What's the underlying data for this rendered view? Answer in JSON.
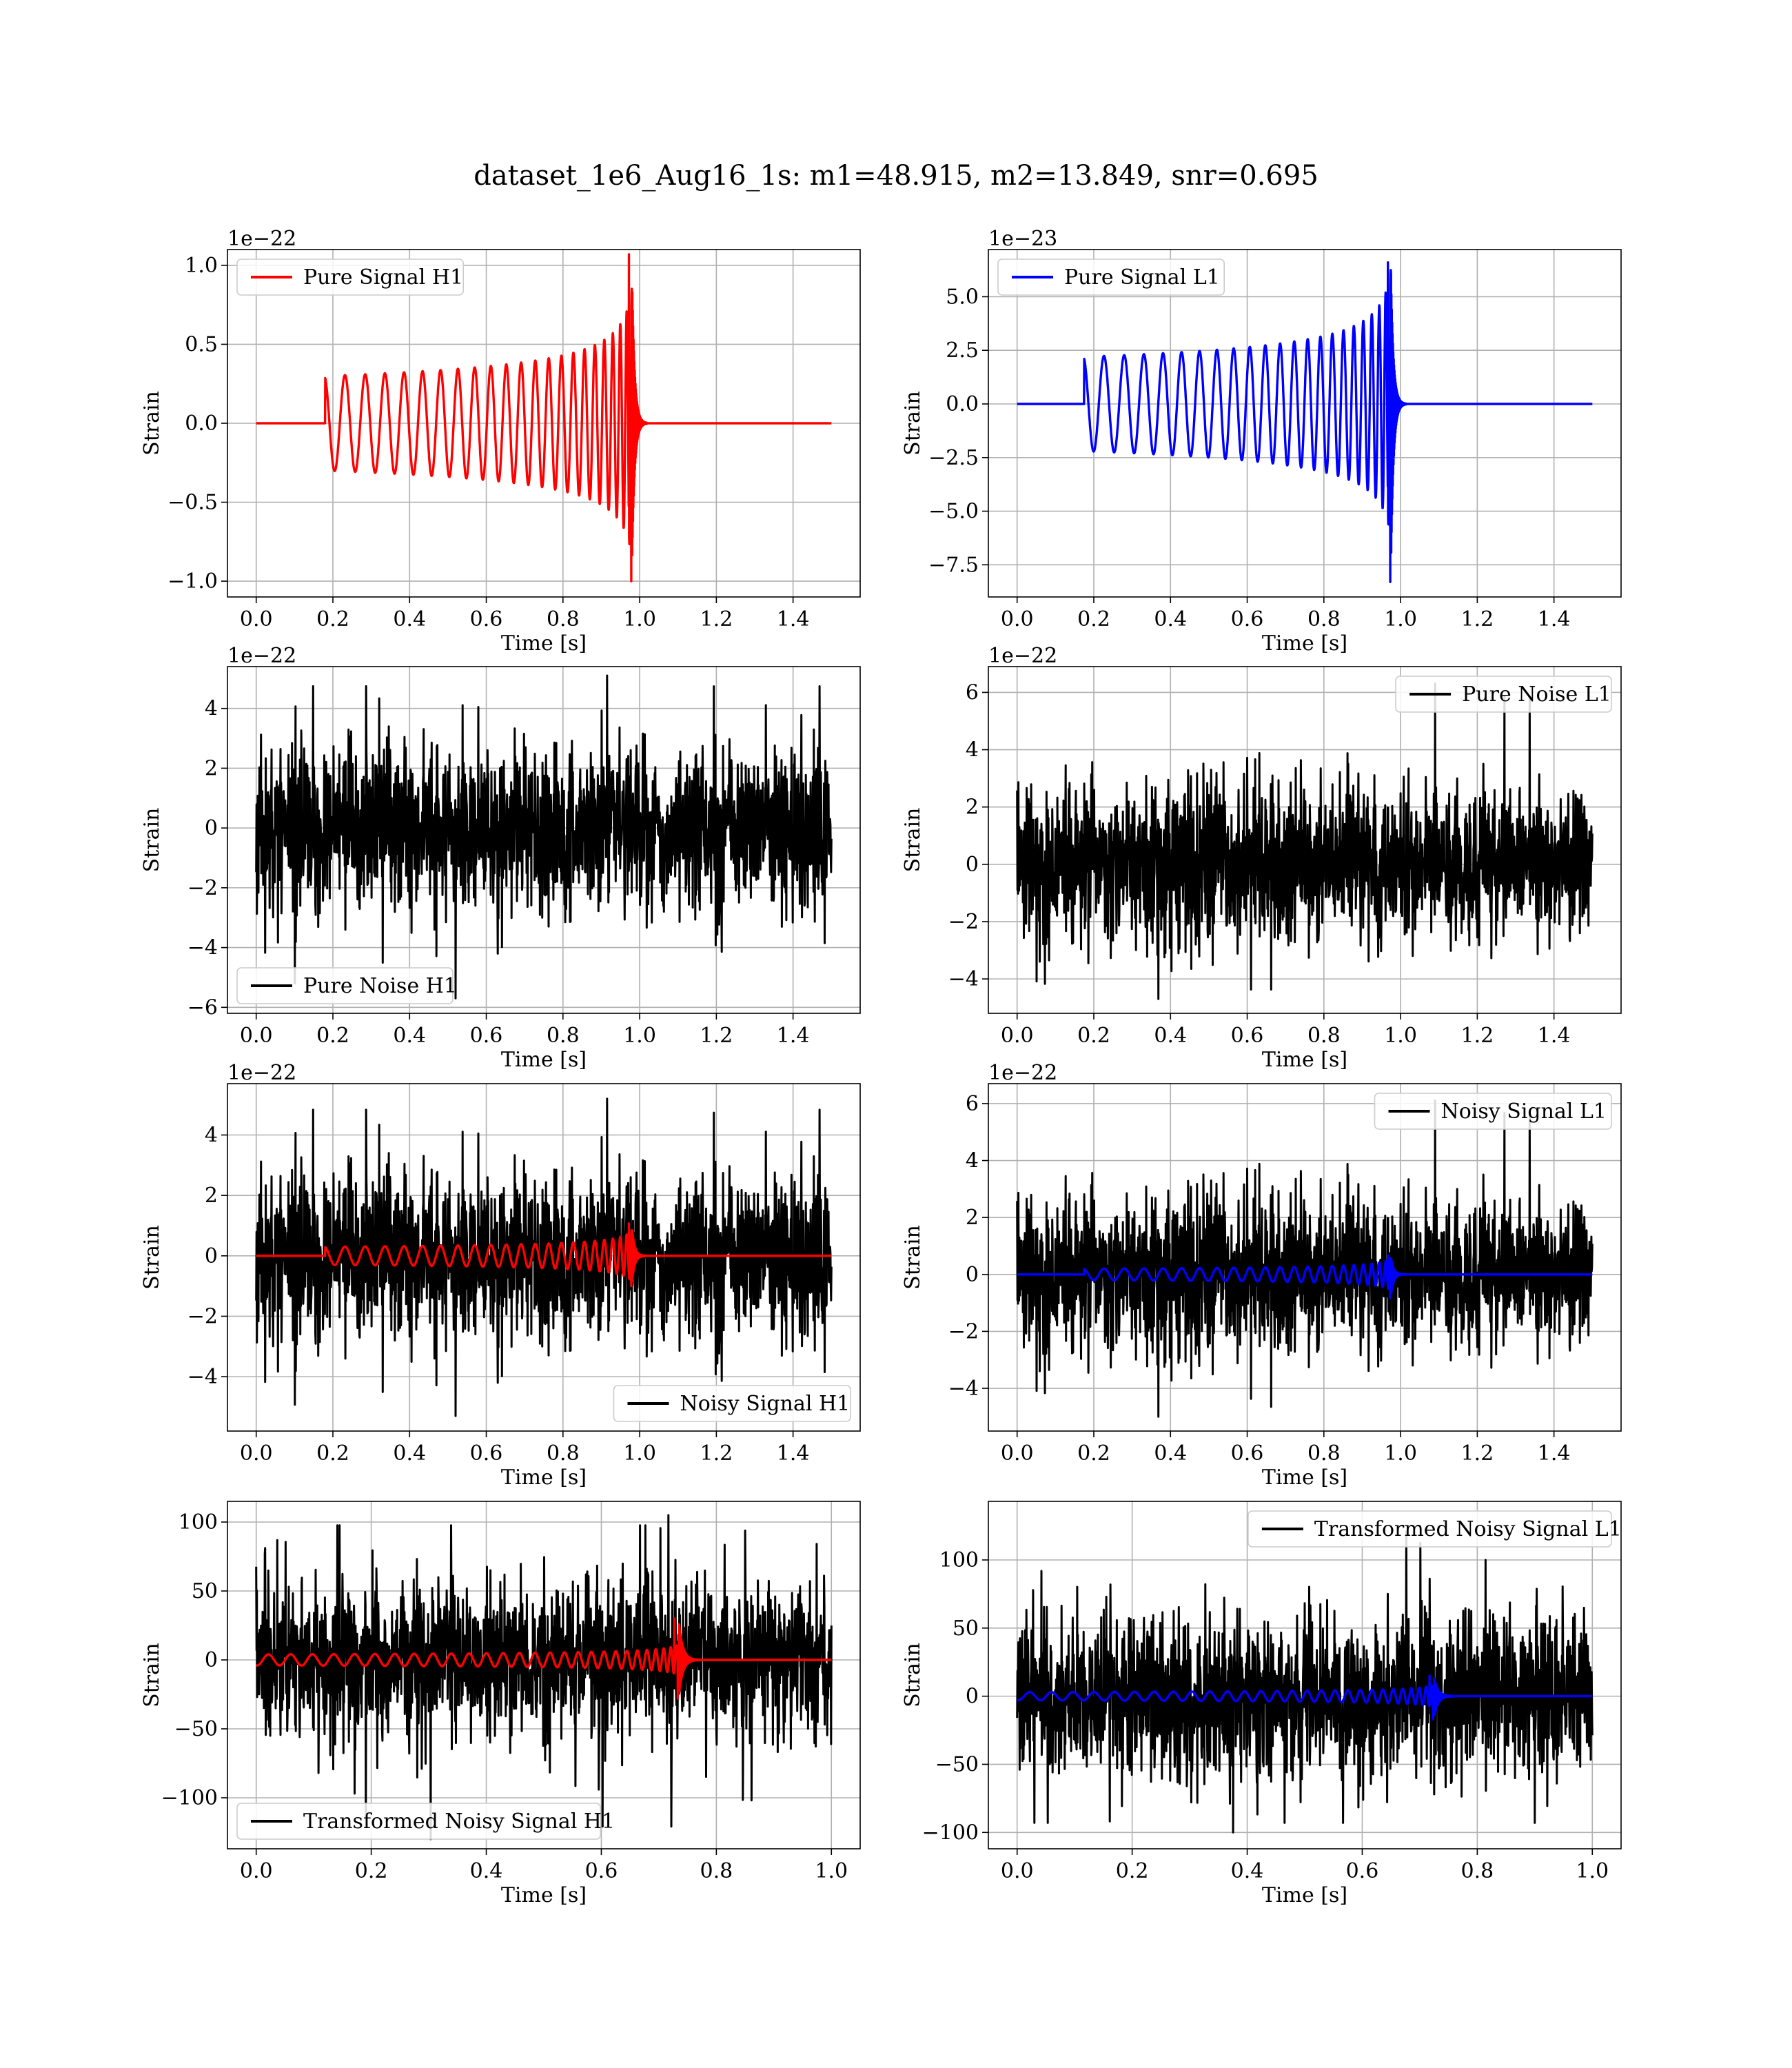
{
  "figure": {
    "title": "dataset_1e6_Aug16_1s: m1=48.915, m2=13.849, snr=0.695"
  },
  "chart_data": [
    {
      "id": "p0",
      "type": "line",
      "title": "",
      "xlabel": "Time [s]",
      "ylabel": "Strain",
      "offset_text": "1e−22",
      "xlim": [
        -0.075,
        1.575
      ],
      "ylim": [
        -1.1,
        1.1
      ],
      "xticks": [
        0.0,
        0.2,
        0.4,
        0.6,
        0.8,
        1.0,
        1.2,
        1.4
      ],
      "xtick_labels": [
        "0.0",
        "0.2",
        "0.4",
        "0.6",
        "0.8",
        "1.0",
        "1.2",
        "1.4"
      ],
      "yticks": [
        -1.0,
        -0.5,
        0.0,
        0.5,
        1.0
      ],
      "ytick_labels": [
        "−1.0",
        "−0.5",
        "0.0",
        "0.5",
        "1.0"
      ],
      "grid": true,
      "legend_position": "upper left",
      "series": [
        {
          "name": "Pure Signal H1",
          "kind": "chirp",
          "color": "#ff0000",
          "duration": 1.5,
          "start": 0.18,
          "merger": 0.98,
          "start_amp": 0.3,
          "peak_amp": 1.07,
          "min_amp": -1.0,
          "cycles": 22,
          "in_legend": true
        }
      ]
    },
    {
      "id": "p1",
      "type": "line",
      "title": "",
      "xlabel": "Time [s]",
      "ylabel": "Strain",
      "offset_text": "1e−23",
      "xlim": [
        -0.075,
        1.575
      ],
      "ylim": [
        -9.0,
        7.2
      ],
      "xticks": [
        0.0,
        0.2,
        0.4,
        0.6,
        0.8,
        1.0,
        1.2,
        1.4
      ],
      "xtick_labels": [
        "0.0",
        "0.2",
        "0.4",
        "0.6",
        "0.8",
        "1.0",
        "1.2",
        "1.4"
      ],
      "yticks": [
        -7.5,
        -5.0,
        -2.5,
        0.0,
        2.5,
        5.0
      ],
      "ytick_labels": [
        "−7.5",
        "−5.0",
        "−2.5",
        "0.0",
        "2.5",
        "5.0"
      ],
      "grid": true,
      "legend_position": "upper left",
      "series": [
        {
          "name": "Pure Signal L1",
          "kind": "chirp",
          "color": "#0000ff",
          "duration": 1.5,
          "start": 0.175,
          "merger": 0.975,
          "start_amp": 2.2,
          "peak_amp": 6.6,
          "min_amp": -8.3,
          "cycles": 22,
          "in_legend": true
        }
      ]
    },
    {
      "id": "p2",
      "type": "line",
      "title": "",
      "xlabel": "Time [s]",
      "ylabel": "Strain",
      "offset_text": "1e−22",
      "xlim": [
        -0.075,
        1.575
      ],
      "ylim": [
        -6.2,
        5.4
      ],
      "xticks": [
        0.0,
        0.2,
        0.4,
        0.6,
        0.8,
        1.0,
        1.2,
        1.4
      ],
      "xtick_labels": [
        "0.0",
        "0.2",
        "0.4",
        "0.6",
        "0.8",
        "1.0",
        "1.2",
        "1.4"
      ],
      "yticks": [
        -6,
        -4,
        -2,
        0,
        2,
        4
      ],
      "ytick_labels": [
        "−6",
        "−4",
        "−2",
        "0",
        "2",
        "4"
      ],
      "grid": true,
      "legend_position": "lower left",
      "series": [
        {
          "name": "Pure Noise H1",
          "kind": "noise",
          "color": "#000000",
          "duration": 1.5,
          "sigma": 1.3,
          "max": 5.1,
          "min": -5.7,
          "seed": 11,
          "in_legend": true
        }
      ]
    },
    {
      "id": "p3",
      "type": "line",
      "title": "",
      "xlabel": "Time [s]",
      "ylabel": "Strain",
      "offset_text": "1e−22",
      "xlim": [
        -0.075,
        1.575
      ],
      "ylim": [
        -5.2,
        6.9
      ],
      "xticks": [
        0.0,
        0.2,
        0.4,
        0.6,
        0.8,
        1.0,
        1.2,
        1.4
      ],
      "xtick_labels": [
        "0.0",
        "0.2",
        "0.4",
        "0.6",
        "0.8",
        "1.0",
        "1.2",
        "1.4"
      ],
      "yticks": [
        -4,
        -2,
        0,
        2,
        4,
        6
      ],
      "ytick_labels": [
        "−4",
        "−2",
        "0",
        "2",
        "4",
        "6"
      ],
      "grid": true,
      "legend_position": "upper right",
      "series": [
        {
          "name": "Pure Noise L1",
          "kind": "noise",
          "color": "#000000",
          "duration": 1.5,
          "sigma": 1.3,
          "max": 6.3,
          "min": -4.7,
          "seed": 23,
          "in_legend": true
        }
      ]
    },
    {
      "id": "p4",
      "type": "line",
      "title": "",
      "xlabel": "Time [s]",
      "ylabel": "Strain",
      "offset_text": "1e−22",
      "xlim": [
        -0.075,
        1.575
      ],
      "ylim": [
        -5.8,
        5.7
      ],
      "xticks": [
        0.0,
        0.2,
        0.4,
        0.6,
        0.8,
        1.0,
        1.2,
        1.4
      ],
      "xtick_labels": [
        "0.0",
        "0.2",
        "0.4",
        "0.6",
        "0.8",
        "1.0",
        "1.2",
        "1.4"
      ],
      "yticks": [
        -4,
        -2,
        0,
        2,
        4
      ],
      "ytick_labels": [
        "−4",
        "−2",
        "0",
        "2",
        "4"
      ],
      "grid": true,
      "legend_position": "lower right",
      "series": [
        {
          "name": "Noisy Signal H1",
          "kind": "noise",
          "color": "#000000",
          "duration": 1.5,
          "sigma": 1.3,
          "max": 5.2,
          "min": -5.3,
          "seed": 11,
          "in_legend": true
        },
        {
          "name": "",
          "kind": "chirp",
          "color": "#ff0000",
          "duration": 1.5,
          "start": 0.18,
          "merger": 0.98,
          "start_amp": 0.3,
          "peak_amp": 1.07,
          "min_amp": -1.0,
          "cycles": 22,
          "in_legend": false
        }
      ]
    },
    {
      "id": "p5",
      "type": "line",
      "title": "",
      "xlabel": "Time [s]",
      "ylabel": "Strain",
      "offset_text": "1e−22",
      "xlim": [
        -0.075,
        1.575
      ],
      "ylim": [
        -5.5,
        6.7
      ],
      "xticks": [
        0.0,
        0.2,
        0.4,
        0.6,
        0.8,
        1.0,
        1.2,
        1.4
      ],
      "xtick_labels": [
        "0.0",
        "0.2",
        "0.4",
        "0.6",
        "0.8",
        "1.0",
        "1.2",
        "1.4"
      ],
      "yticks": [
        -4,
        -2,
        0,
        2,
        4,
        6
      ],
      "ytick_labels": [
        "−4",
        "−2",
        "0",
        "2",
        "4",
        "6"
      ],
      "grid": true,
      "legend_position": "upper right",
      "series": [
        {
          "name": "Noisy Signal L1",
          "kind": "noise",
          "color": "#000000",
          "duration": 1.5,
          "sigma": 1.3,
          "max": 6.1,
          "min": -5.0,
          "seed": 23,
          "in_legend": true
        },
        {
          "name": "",
          "kind": "chirp",
          "color": "#0000ff",
          "duration": 1.5,
          "start": 0.175,
          "merger": 0.975,
          "start_amp": 0.2,
          "peak_amp": 0.66,
          "min_amp": -0.83,
          "cycles": 22,
          "in_legend": false
        }
      ]
    },
    {
      "id": "p6",
      "type": "line",
      "title": "",
      "xlabel": "Time [s]",
      "ylabel": "Strain",
      "offset_text": "",
      "xlim": [
        -0.05,
        1.05
      ],
      "ylim": [
        -137,
        115
      ],
      "xticks": [
        0.0,
        0.2,
        0.4,
        0.6,
        0.8,
        1.0
      ],
      "xtick_labels": [
        "0.0",
        "0.2",
        "0.4",
        "0.6",
        "0.8",
        "1.0"
      ],
      "yticks": [
        -100,
        -50,
        0,
        50,
        100
      ],
      "ytick_labels": [
        "−100",
        "−50",
        "0",
        "50",
        "100"
      ],
      "grid": true,
      "legend_position": "lower left",
      "series": [
        {
          "name": "Transformed Noisy Signal H1",
          "kind": "noise",
          "color": "#000000",
          "duration": 1.0,
          "sigma": 28,
          "max": 105,
          "min": -130,
          "seed": 37,
          "in_legend": true
        },
        {
          "name": "",
          "kind": "chirp",
          "color": "#ff0000",
          "duration": 1.0,
          "start": 0.0,
          "merger": 0.735,
          "start_amp": 4,
          "peak_amp": 30,
          "min_amp": -28,
          "cycles": 28,
          "in_legend": false
        }
      ]
    },
    {
      "id": "p7",
      "type": "line",
      "title": "",
      "xlabel": "Time [s]",
      "ylabel": "Strain",
      "offset_text": "",
      "xlim": [
        -0.05,
        1.05
      ],
      "ylim": [
        -112,
        143
      ],
      "xticks": [
        0.0,
        0.2,
        0.4,
        0.6,
        0.8,
        1.0
      ],
      "xtick_labels": [
        "0.0",
        "0.2",
        "0.4",
        "0.6",
        "0.8",
        "1.0"
      ],
      "yticks": [
        -100,
        -50,
        0,
        50,
        100
      ],
      "ytick_labels": [
        "−100",
        "−50",
        "0",
        "50",
        "100"
      ],
      "grid": true,
      "legend_position": "upper right",
      "series": [
        {
          "name": "Transformed Noisy Signal L1",
          "kind": "noise",
          "color": "#000000",
          "duration": 1.0,
          "sigma": 28,
          "max": 121,
          "min": -100,
          "seed": 41,
          "in_legend": true
        },
        {
          "name": "",
          "kind": "chirp",
          "color": "#0000ff",
          "duration": 1.0,
          "start": 0.0,
          "merger": 0.725,
          "start_amp": 3,
          "peak_amp": 15,
          "min_amp": -17,
          "cycles": 28,
          "in_legend": false
        }
      ]
    }
  ]
}
